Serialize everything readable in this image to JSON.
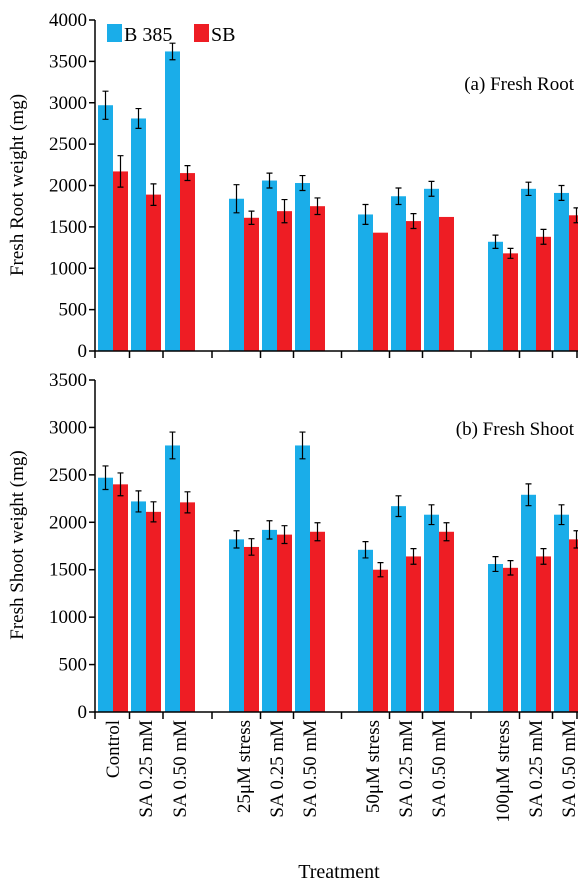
{
  "colors": {
    "b385": "#1aade9",
    "sb": "#ee1d24",
    "axis": "#000000"
  },
  "legend": [
    "B 385",
    "SB"
  ],
  "xlabel": "Treatment",
  "categories": [
    "Control",
    "SA 0.25 mM",
    "SA 0.50 mM",
    "25μM stress",
    "SA 0.25 mM",
    "SA 0.50 mM",
    "50μM stress",
    "SA 0.25 mM",
    "SA 0.50 mM",
    "100μM stress",
    "SA 0.25 mM",
    "SA 0.50 mM"
  ],
  "chart_data": [
    {
      "type": "bar",
      "title": "(a) Fresh Root",
      "ylabel": "Fresh Root weight (mg)",
      "xlabel": "Treatment",
      "ylim": [
        0,
        4000
      ],
      "yticks": [
        0,
        500,
        1000,
        1500,
        2000,
        2500,
        3000,
        3500,
        4000
      ],
      "categories": [
        "Control",
        "SA 0.25 mM",
        "SA 0.50 mM",
        "25μM stress",
        "SA 0.25 mM",
        "SA 0.50 mM",
        "50μM stress",
        "SA 0.25 mM",
        "SA 0.50 mM",
        "100μM stress",
        "SA 0.25 mM",
        "SA 0.50 mM"
      ],
      "series": [
        {
          "name": "B 385",
          "values": [
            2970,
            2810,
            3620,
            1840,
            2060,
            2030,
            1650,
            1870,
            1960,
            1320,
            1960,
            1910
          ],
          "errors": [
            170,
            120,
            100,
            170,
            90,
            90,
            120,
            100,
            90,
            80,
            80,
            90
          ]
        },
        {
          "name": "SB",
          "values": [
            2170,
            1890,
            2150,
            1610,
            1690,
            1750,
            1430,
            1570,
            1620,
            1180,
            1380,
            1640
          ],
          "errors": [
            190,
            130,
            90,
            80,
            140,
            100,
            0,
            90,
            0,
            60,
            90,
            90
          ]
        }
      ]
    },
    {
      "type": "bar",
      "title": "(b) Fresh Shoot",
      "ylabel": "Fresh Shoot weight (mg)",
      "xlabel": "Treatment",
      "ylim": [
        0,
        3500
      ],
      "yticks": [
        0,
        500,
        1000,
        1500,
        2000,
        2500,
        3000,
        3500
      ],
      "categories": [
        "Control",
        "SA 0.25 mM",
        "SA 0.50 mM",
        "25μM stress",
        "SA 0.25 mM",
        "SA 0.50 mM",
        "50μM stress",
        "SA 0.25 mM",
        "SA 0.50 mM",
        "100μM stress",
        "SA 0.25 mM",
        "SA 0.50 mM"
      ],
      "series": [
        {
          "name": "B 385",
          "values": [
            2470,
            2220,
            2810,
            1820,
            1920,
            2810,
            1710,
            2170,
            2080,
            1560,
            2290,
            2080
          ]
        },
        {
          "name": "SB",
          "values": [
            2400,
            2110,
            2210,
            1740,
            1870,
            1900,
            1500,
            1640,
            1900,
            1520,
            1640,
            1820
          ]
        }
      ]
    }
  ]
}
